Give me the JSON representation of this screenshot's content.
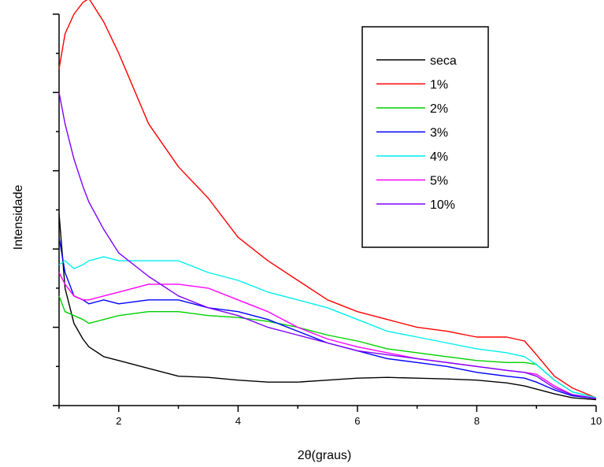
{
  "chart_data": {
    "type": "line",
    "title": "",
    "xlabel": "2θ(graus)",
    "ylabel": "Intensidade",
    "xlim": [
      1,
      10
    ],
    "ylim": [
      0,
      100
    ],
    "x_ticks": [
      2,
      4,
      6,
      8,
      10
    ],
    "y_tick_labels_shown": false,
    "grid": false,
    "legend_position": "top-right",
    "x": [
      1.0,
      1.1,
      1.25,
      1.4,
      1.5,
      1.75,
      2.0,
      2.5,
      3.0,
      3.5,
      4.0,
      4.5,
      5.0,
      5.5,
      6.0,
      6.5,
      7.0,
      7.5,
      8.0,
      8.5,
      8.8,
      9.0,
      9.3,
      9.6,
      10.0
    ],
    "series": [
      {
        "name": "seca",
        "color": "#000000",
        "values": [
          49,
          30,
          21,
          17,
          15,
          12.5,
          11.5,
          9.5,
          7.5,
          7.2,
          6.5,
          6.0,
          6.0,
          6.5,
          7.0,
          7.2,
          7.0,
          6.8,
          6.5,
          5.8,
          5.0,
          4.2,
          3.0,
          2.0,
          1.5
        ]
      },
      {
        "name": "1%",
        "color": "#ff0000",
        "values": [
          86,
          95,
          100,
          103,
          104,
          98,
          90,
          72,
          61,
          53,
          43,
          37,
          32,
          27,
          24,
          22,
          20,
          19,
          17.5,
          17.5,
          16.5,
          13,
          7.5,
          4.5,
          2.0
        ]
      },
      {
        "name": "2%",
        "color": "#00d000",
        "values": [
          28,
          24,
          23,
          22,
          21,
          22,
          23,
          24,
          24,
          23,
          22.5,
          21.5,
          20,
          18,
          16.5,
          14.5,
          13.5,
          12.5,
          11.5,
          11.0,
          11.0,
          10.5,
          6.5,
          3.5,
          2.0
        ]
      },
      {
        "name": "3%",
        "color": "#0000ff",
        "values": [
          43,
          34,
          28,
          27,
          26,
          27,
          26,
          27,
          27,
          25,
          24,
          22,
          19,
          16,
          14,
          12,
          11,
          10,
          8.5,
          7.5,
          7.0,
          6.0,
          4.0,
          2.5,
          1.8
        ]
      },
      {
        "name": "4%",
        "color": "#00eeee",
        "values": [
          36,
          37,
          35,
          36,
          37,
          38,
          37,
          37,
          37,
          34,
          32,
          29,
          27,
          25,
          22,
          19,
          17.5,
          16,
          14.5,
          13.5,
          12.5,
          10.5,
          6.5,
          3.5,
          2.0
        ]
      },
      {
        "name": "5%",
        "color": "#ff00ff",
        "values": [
          34,
          31,
          28,
          27,
          27,
          28,
          29,
          31,
          31,
          30,
          27,
          24,
          20,
          17,
          15,
          13.5,
          12,
          11,
          10,
          9.0,
          8.5,
          8.0,
          5.0,
          2.8,
          1.8
        ]
      },
      {
        "name": "10%",
        "color": "#8000ff",
        "values": [
          80,
          72,
          63,
          56,
          52,
          45,
          39,
          33,
          28,
          25,
          23,
          20,
          18,
          16,
          14,
          13,
          12,
          11,
          10,
          9.0,
          8.5,
          7.5,
          4.5,
          2.8,
          1.8
        ]
      }
    ]
  }
}
